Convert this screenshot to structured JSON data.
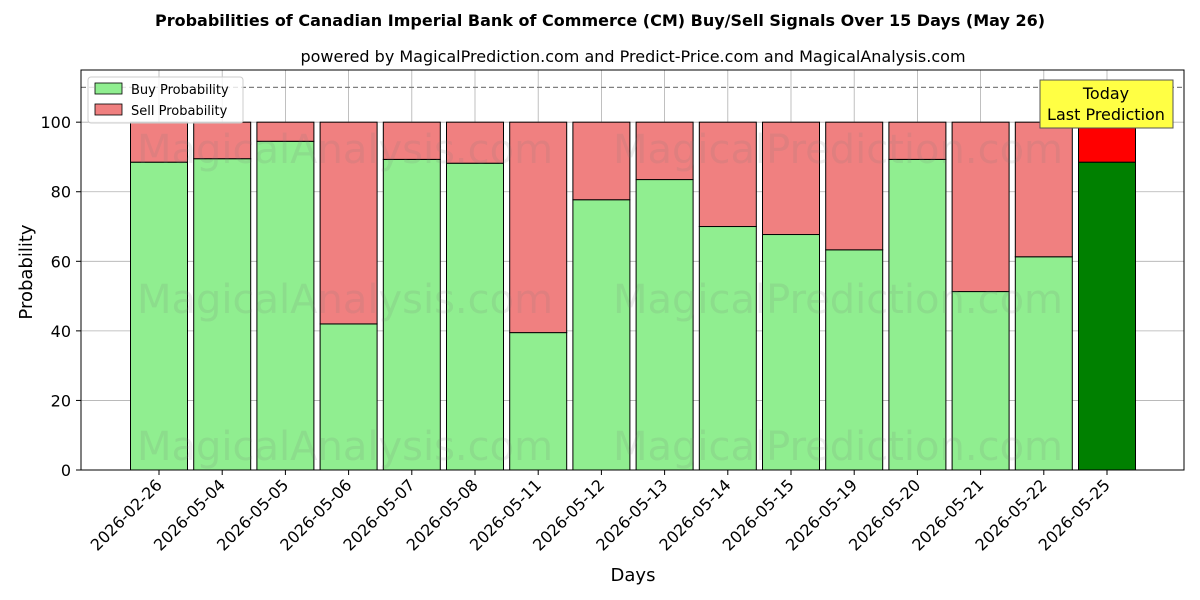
{
  "chart_data": {
    "type": "bar",
    "stacked": true,
    "title": "Probabilities of Canadian Imperial Bank of Commerce (CM) Buy/Sell Signals Over 15 Days (May 26)",
    "subtitle": "powered by MagicalPrediction.com and Predict-Price.com and MagicalAnalysis.com",
    "xlabel": "Days",
    "ylabel": "Probability",
    "ylim": [
      0,
      115
    ],
    "yticks": [
      0,
      20,
      40,
      60,
      80,
      100
    ],
    "grid": true,
    "legend_position": "top-left",
    "reference_line": 110,
    "categories": [
      "2026-02-26",
      "2026-05-04",
      "2026-05-05",
      "2026-05-06",
      "2026-05-07",
      "2026-05-08",
      "2026-05-11",
      "2026-05-12",
      "2026-05-13",
      "2026-05-14",
      "2026-05-15",
      "2026-05-19",
      "2026-05-20",
      "2026-05-21",
      "2026-05-22",
      "2026-05-25"
    ],
    "series": [
      {
        "name": "Buy Probability",
        "color": "#90ee90",
        "highlight_color": "#008000",
        "values": [
          88.5,
          89.5,
          94.5,
          42,
          89.3,
          88.2,
          39.5,
          77.7,
          83.5,
          70,
          67.7,
          63.3,
          89.3,
          51.3,
          61.3,
          88.5
        ]
      },
      {
        "name": "Sell Probability",
        "color": "#f08080",
        "highlight_color": "#ff0000",
        "values": [
          11.5,
          10.5,
          5.5,
          58,
          10.7,
          11.8,
          60.5,
          22.3,
          16.5,
          30,
          32.3,
          36.7,
          10.7,
          48.7,
          38.7,
          11.5
        ]
      }
    ],
    "annotation": {
      "line1": "Today",
      "line2": "Last Prediction"
    },
    "watermarks": [
      "MagicalAnalysis.com",
      "MagicalPrediction.com"
    ]
  }
}
